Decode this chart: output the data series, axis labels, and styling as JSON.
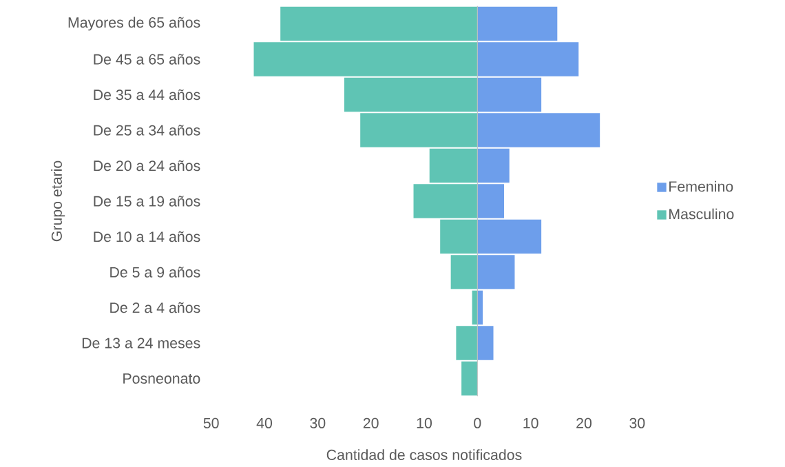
{
  "chart_data": {
    "type": "bar",
    "orientation": "horizontal",
    "stacked": true,
    "xlabel": "Cantidad de casos notificados",
    "ylabel": "Grupo etario",
    "categories": [
      "Mayores de 65 años",
      "De 45 a 65 años",
      "De 35 a 44 años",
      "De 25 a 34 años",
      "De 20 a 24 años",
      "De 15 a 19 años",
      "De 10 a 14 años",
      "De 5 a 9 años",
      "De 2 a 4 años",
      "De 13 a 24 meses",
      "Posneonato"
    ],
    "series": [
      {
        "name": "Femenino",
        "color": "#6d9eeb",
        "values": [
          15,
          19,
          12,
          23,
          6,
          5,
          12,
          7,
          1,
          3,
          0
        ]
      },
      {
        "name": "Masculino",
        "color": "#5fc4b4",
        "values": [
          -37,
          -42,
          -25,
          -22,
          -9,
          -12,
          -7,
          -5,
          -1,
          -4,
          -3
        ]
      }
    ],
    "xlim": [
      -50,
      30
    ],
    "xticks": [
      {
        "value": -50,
        "label": "50"
      },
      {
        "value": -40,
        "label": "40"
      },
      {
        "value": -30,
        "label": "30"
      },
      {
        "value": -20,
        "label": "20"
      },
      {
        "value": -10,
        "label": "10"
      },
      0,
      10,
      20,
      30
    ],
    "legend": "right"
  }
}
